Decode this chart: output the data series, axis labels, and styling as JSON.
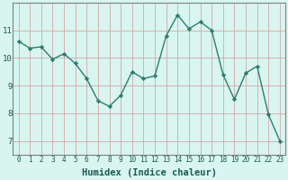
{
  "x": [
    0,
    1,
    2,
    3,
    4,
    5,
    6,
    7,
    8,
    9,
    10,
    11,
    12,
    13,
    14,
    15,
    16,
    17,
    18,
    19,
    20,
    21,
    22,
    23
  ],
  "y": [
    10.6,
    10.35,
    10.4,
    9.95,
    10.15,
    9.8,
    9.25,
    8.45,
    8.25,
    8.65,
    9.5,
    9.25,
    9.35,
    10.8,
    11.55,
    11.05,
    11.3,
    11.0,
    9.4,
    8.5,
    9.45,
    9.7,
    7.95,
    7.0
  ],
  "line_color": "#2e7d6e",
  "marker": "D",
  "markersize": 2.2,
  "linewidth": 1.0,
  "bg_color": "#d8f5f0",
  "grid_color": "#d4a8a8",
  "xlabel": "Humidex (Indice chaleur)",
  "xlabel_fontsize": 7.5,
  "ytick_labels": [
    7,
    8,
    9,
    10,
    11
  ],
  "xtick_labels": [
    0,
    1,
    2,
    3,
    4,
    5,
    6,
    7,
    8,
    9,
    10,
    11,
    12,
    13,
    14,
    15,
    16,
    17,
    18,
    19,
    20,
    21,
    22,
    23
  ],
  "ylim": [
    6.5,
    12.0
  ],
  "xlim": [
    -0.5,
    23.5
  ],
  "tick_fontsize": 5.5,
  "ytick_fontsize": 6.5,
  "spine_color": "#808080"
}
